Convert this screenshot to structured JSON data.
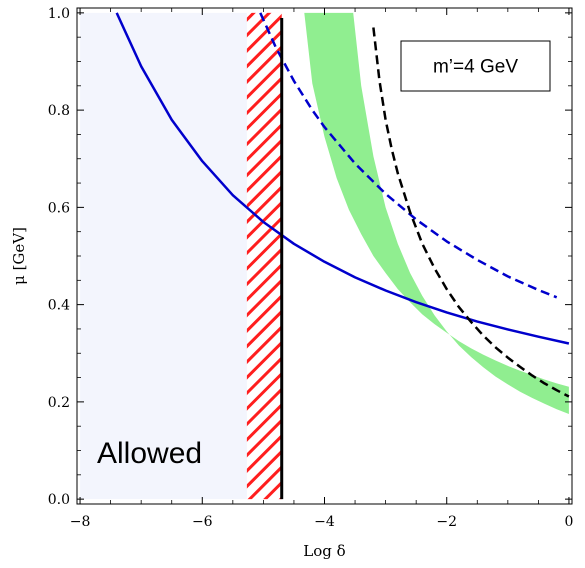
{
  "chart_data": {
    "type": "line",
    "title": "",
    "xlabel": "Log δ",
    "ylabel": "μ [GeV]",
    "xlim": [
      -8.05,
      0.05
    ],
    "ylim": [
      -0.01,
      1.01
    ],
    "x_ticks": [
      -8,
      -6,
      -4,
      -2,
      0
    ],
    "x_tick_labels": [
      "−8",
      "−6",
      "−4",
      "−2",
      "0"
    ],
    "y_ticks": [
      0.0,
      0.2,
      0.4,
      0.6,
      0.8,
      1.0
    ],
    "y_tick_labels": [
      "0.0",
      "0.2",
      "0.4",
      "0.6",
      "0.8",
      "1.0"
    ],
    "grid": false,
    "allowed_region": {
      "label": "Allowed",
      "x_range": [
        -8,
        -4.7
      ],
      "y_range": [
        0,
        1
      ],
      "color": "#f3f5fd"
    },
    "hatched_region": {
      "x_range": [
        -5.27,
        -4.7
      ],
      "y_range": [
        0,
        1
      ],
      "color": "#ff1e1e"
    },
    "vertical_line": {
      "x": -4.7,
      "color": "#000000"
    },
    "band": {
      "color": "#90ee90",
      "left_edge": {
        "x": [
          -4.33,
          -4.2,
          -4.0,
          -3.8,
          -3.6,
          -3.4,
          -3.2,
          -3.0,
          -2.8,
          -2.6,
          -2.4,
          -2.2,
          -2.0,
          -1.8,
          -1.6,
          -1.4,
          -1.2,
          -1.0,
          -0.8,
          -0.6,
          -0.4,
          -0.2,
          0.0
        ],
        "y": [
          1.0,
          0.855,
          0.745,
          0.66,
          0.595,
          0.545,
          0.5,
          0.465,
          0.432,
          0.405,
          0.38,
          0.36,
          0.342,
          0.325,
          0.31,
          0.297,
          0.285,
          0.274,
          0.264,
          0.255,
          0.246,
          0.238,
          0.231
        ]
      },
      "right_edge": {
        "x": [
          -3.53,
          -3.4,
          -3.2,
          -3.0,
          -2.8,
          -2.6,
          -2.4,
          -2.2,
          -2.0,
          -1.8,
          -1.6,
          -1.4,
          -1.2,
          -1.0,
          -0.8,
          -0.6,
          -0.4,
          -0.2,
          0.0
        ],
        "y": [
          1.0,
          0.85,
          0.705,
          0.6,
          0.525,
          0.465,
          0.418,
          0.378,
          0.345,
          0.316,
          0.292,
          0.271,
          0.252,
          0.236,
          0.221,
          0.208,
          0.196,
          0.185,
          0.175
        ]
      }
    },
    "series": [
      {
        "style": "solid",
        "color": "#0000cc",
        "x": [
          -7.4,
          -7.0,
          -6.5,
          -6.0,
          -5.5,
          -5.0,
          -4.5,
          -4.0,
          -3.5,
          -3.0,
          -2.5,
          -2.0,
          -1.5,
          -1.0,
          -0.5,
          0.0
        ],
        "y": [
          1.0,
          0.89,
          0.78,
          0.695,
          0.625,
          0.57,
          0.525,
          0.488,
          0.456,
          0.429,
          0.405,
          0.384,
          0.365,
          0.349,
          0.334,
          0.32
        ]
      },
      {
        "style": "dashed",
        "color": "#0000cc",
        "x": [
          -5.05,
          -4.8,
          -4.5,
          -4.2,
          -4.0,
          -3.5,
          -3.0,
          -2.5,
          -2.0,
          -1.5,
          -1.0,
          -0.5,
          -0.2
        ],
        "y": [
          1.0,
          0.93,
          0.86,
          0.8,
          0.765,
          0.69,
          0.628,
          0.575,
          0.53,
          0.492,
          0.458,
          0.43,
          0.415
        ]
      },
      {
        "style": "dashed",
        "color": "#000000",
        "x": [
          -3.2,
          -3.1,
          -3.0,
          -2.9,
          -2.8,
          -2.6,
          -2.4,
          -2.2,
          -2.0,
          -1.8,
          -1.6,
          -1.4,
          -1.2,
          -1.0,
          -0.8,
          -0.6,
          -0.4,
          -0.2,
          0.0
        ],
        "y": [
          0.97,
          0.86,
          0.78,
          0.72,
          0.67,
          0.59,
          0.525,
          0.475,
          0.432,
          0.395,
          0.364,
          0.336,
          0.312,
          0.291,
          0.272,
          0.254,
          0.238,
          0.224,
          0.211
        ]
      }
    ],
    "annotations": [
      {
        "text": "m’=4 GeV",
        "position": "top-right",
        "boxed": true
      },
      {
        "text": "Allowed",
        "position": "bottom-left",
        "boxed": false
      }
    ]
  }
}
